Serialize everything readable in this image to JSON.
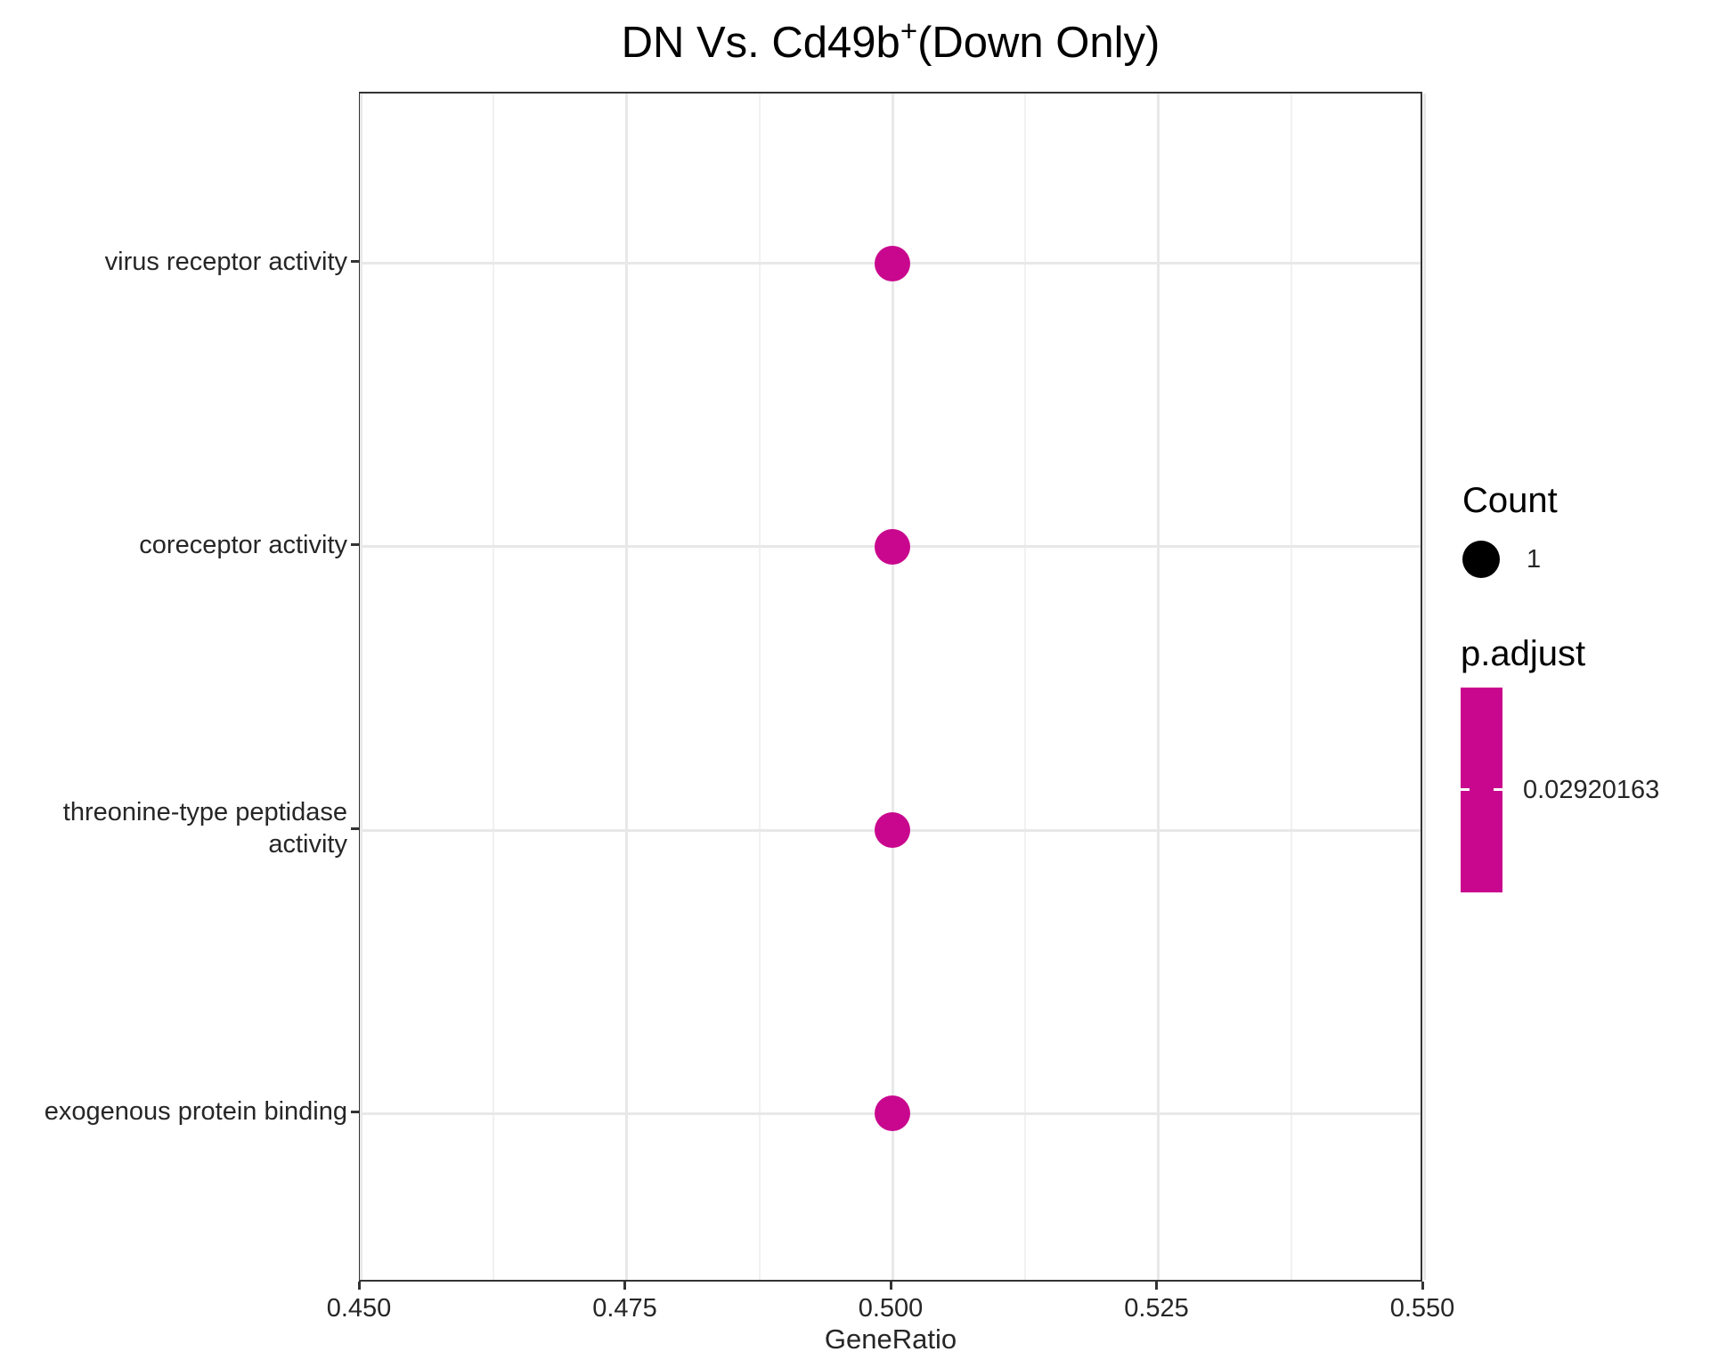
{
  "title": {
    "main": "DN Vs. Cd49b",
    "superscript": "+",
    "suffix": "(Down Only)"
  },
  "chart_data": {
    "type": "scatter",
    "subtype": "enrichment-dotplot",
    "title": "DN Vs. Cd49b+(Down Only)",
    "xlabel": "GeneRatio",
    "ylabel": "",
    "xlim": [
      0.45,
      0.55
    ],
    "x_ticks": [
      {
        "value": 0.45,
        "label": "0.450"
      },
      {
        "value": 0.475,
        "label": "0.475"
      },
      {
        "value": 0.5,
        "label": "0.500"
      },
      {
        "value": 0.525,
        "label": "0.525"
      },
      {
        "value": 0.55,
        "label": "0.550"
      }
    ],
    "categories": [
      "virus receptor activity",
      "coreceptor activity",
      "threonine-type peptidase activity",
      "exogenous protein binding"
    ],
    "points": [
      {
        "category": "virus receptor activity",
        "x": 0.5,
        "count": 1,
        "p_adjust": 0.02920163
      },
      {
        "category": "coreceptor activity",
        "x": 0.5,
        "count": 1,
        "p_adjust": 0.02920163
      },
      {
        "category": "threonine-type peptidase activity",
        "x": 0.5,
        "count": 1,
        "p_adjust": 0.02920163
      },
      {
        "category": "exogenous protein binding",
        "x": 0.5,
        "count": 1,
        "p_adjust": 0.02920163
      }
    ],
    "grid": "on",
    "legend_position": "right"
  },
  "legend": {
    "count": {
      "title": "Count",
      "items": [
        {
          "label": "1",
          "size": 1
        }
      ]
    },
    "p_adjust": {
      "title": "p.adjust",
      "tick_label": "0.02920163",
      "value": 0.02920163
    }
  },
  "colors": {
    "dot": "#C9078E",
    "colorbar": "#C9078E",
    "count_dot": "#000000",
    "grid_major": "#E8E8E8",
    "grid_minor": "#F1F1F1",
    "panel_border": "#333333",
    "text": "#262626"
  }
}
